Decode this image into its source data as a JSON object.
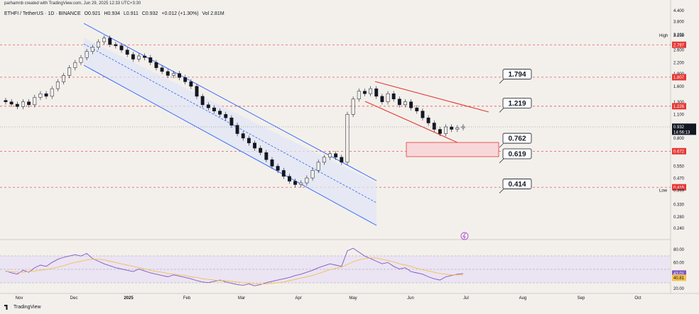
{
  "header": {
    "creator_line": "parhamnb created with TradingView.com, Jun 29, 2025 12:33 UTC+3:30",
    "symbol": "ETHFI / TetherUS · 1D · BINANCE",
    "open": "O0.921",
    "high": "H0.934",
    "low": "L0.911",
    "close": "C0.932",
    "change": "+0.012 (+1.30%)",
    "volume": "Vol 2.81M"
  },
  "footer": {
    "brand": "TradingView"
  },
  "colors": {
    "background": "#f3f0ec",
    "channel": "#2962ff",
    "wedge": "#e53935",
    "level_line": "#e53935",
    "rsi": "#7e57c2",
    "rsi_ma": "#f5c04a",
    "zone_fill": "#f8d7da"
  },
  "chart_data": [
    {
      "type": "candlestick",
      "symbol": "ETHFI / TetherUS",
      "interval": "1D",
      "exchange": "BINANCE",
      "scale": "log",
      "x_ticks": [
        "Nov",
        "Dec",
        "2025",
        "Feb",
        "Mar",
        "Apr",
        "May",
        "Jun",
        "Jul",
        "Aug",
        "Sep",
        "Oct"
      ],
      "y_ticks": [
        "4.400",
        "3.800",
        "3.200",
        "3.158",
        "2.787",
        "2.600",
        "2.200",
        "1.900",
        "1.807",
        "1.600",
        "1.300",
        "1.226",
        "1.100",
        "0.932",
        "0.800",
        "0.672",
        "0.550",
        "0.470",
        "0.415",
        "0.399",
        "0.330",
        "0.280",
        "0.240"
      ],
      "ylim": [
        0.22,
        4.5
      ],
      "price_tags": [
        {
          "label": "High",
          "value": "3.158",
          "kind": "plain"
        },
        {
          "label": "",
          "value": "2.787",
          "kind": "red"
        },
        {
          "label": "",
          "value": "1.807",
          "kind": "red"
        },
        {
          "label": "",
          "value": "1.226",
          "kind": "red"
        },
        {
          "label": "",
          "value": "0.932",
          "kind": "dark",
          "countdown": "14:56:13"
        },
        {
          "label": "",
          "value": "0.672",
          "kind": "red"
        },
        {
          "label": "",
          "value": "0.415",
          "kind": "red"
        },
        {
          "label": "Low",
          "value": "0.399",
          "kind": "plain"
        }
      ],
      "horizontal_levels": [
        2.787,
        1.807,
        1.226,
        0.672,
        0.415
      ],
      "last_price": 0.932,
      "callouts": [
        {
          "label": "1.794",
          "value": 1.794
        },
        {
          "label": "1.219",
          "value": 1.219
        },
        {
          "label": "0.762",
          "value": 0.762
        },
        {
          "label": "0.619",
          "value": 0.619
        },
        {
          "label": "0.414",
          "value": 0.414
        }
      ],
      "support_zone": [
        0.62,
        0.76
      ],
      "series": [
        {
          "name": "ETHFI close (approx.)",
          "values": [
            1.3,
            1.26,
            1.22,
            1.3,
            1.25,
            1.38,
            1.45,
            1.4,
            1.55,
            1.7,
            1.85,
            2.05,
            2.2,
            2.35,
            2.55,
            2.7,
            2.9,
            3.05,
            2.8,
            2.75,
            2.6,
            2.45,
            2.3,
            2.4,
            2.35,
            2.2,
            2.05,
            1.95,
            1.85,
            1.9,
            1.8,
            1.7,
            1.6,
            1.4,
            1.25,
            1.2,
            1.15,
            1.1,
            1.05,
            0.95,
            0.85,
            0.8,
            0.75,
            0.7,
            0.66,
            0.6,
            0.55,
            0.52,
            0.48,
            0.45,
            0.43,
            0.44,
            0.47,
            0.52,
            0.58,
            0.62,
            0.65,
            0.62,
            0.58,
            1.1,
            1.35,
            1.5,
            1.45,
            1.55,
            1.4,
            1.3,
            1.45,
            1.35,
            1.25,
            1.3,
            1.2,
            1.15,
            1.05,
            0.98,
            0.9,
            0.85,
            0.93,
            0.9,
            0.92,
            0.932
          ]
        }
      ]
    },
    {
      "type": "line",
      "name": "RSI",
      "y_ticks": [
        "80.00",
        "60.00",
        "40.00",
        "20.00"
      ],
      "ylim": [
        15,
        90
      ],
      "value_tags": [
        {
          "value": "43.01",
          "kind": "purple"
        },
        {
          "value": "40.81",
          "kind": "yellow"
        }
      ],
      "bands": [
        30,
        50,
        70
      ],
      "series": [
        {
          "name": "RSI",
          "values": [
            47,
            44,
            42,
            48,
            45,
            52,
            56,
            54,
            60,
            65,
            68,
            70,
            72,
            70,
            74,
            66,
            62,
            58,
            55,
            52,
            50,
            48,
            46,
            50,
            47,
            44,
            42,
            40,
            38,
            41,
            39,
            37,
            35,
            32,
            30,
            29,
            31,
            33,
            30,
            28,
            26,
            25,
            27,
            24,
            26,
            29,
            31,
            33,
            35,
            37,
            40,
            42,
            45,
            48,
            52,
            55,
            58,
            56,
            54,
            78,
            82,
            76,
            70,
            66,
            62,
            58,
            60,
            54,
            50,
            52,
            46,
            44,
            42,
            38,
            35,
            33,
            38,
            40,
            42,
            43.01
          ]
        },
        {
          "name": "RSI MA",
          "values": [
            46,
            46,
            45,
            45,
            46,
            47,
            48,
            49,
            51,
            53,
            55,
            58,
            60,
            62,
            64,
            65,
            65,
            64,
            62,
            60,
            58,
            56,
            54,
            52,
            50,
            48,
            46,
            45,
            43,
            42,
            41,
            40,
            38,
            37,
            35,
            34,
            33,
            32,
            32,
            31,
            30,
            29,
            28,
            27,
            27,
            27,
            28,
            29,
            30,
            32,
            34,
            36,
            38,
            40,
            43,
            46,
            49,
            51,
            53,
            57,
            61,
            64,
            66,
            67,
            67,
            65,
            63,
            61,
            58,
            56,
            54,
            51,
            49,
            47,
            45,
            43,
            42,
            41,
            41,
            40.81
          ]
        }
      ]
    }
  ]
}
